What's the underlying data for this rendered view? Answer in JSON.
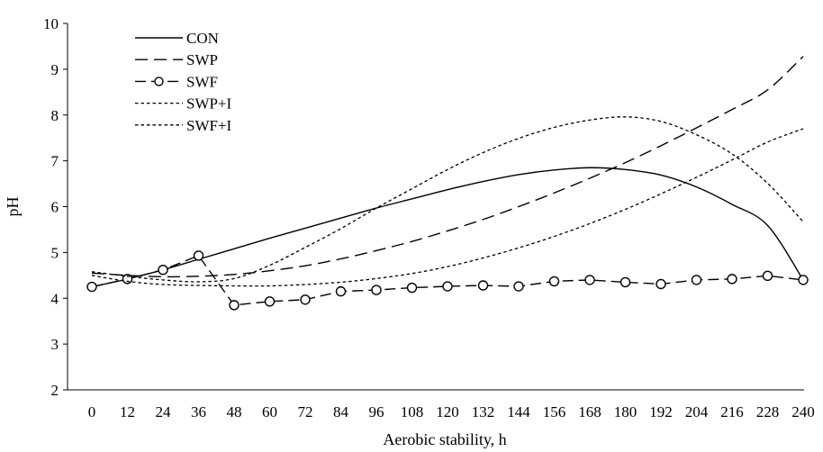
{
  "chart_data": {
    "type": "line",
    "title": "",
    "xlabel": "Aerobic stability, h",
    "ylabel": "pH",
    "x": [
      0,
      12,
      24,
      36,
      48,
      60,
      72,
      84,
      96,
      108,
      120,
      132,
      144,
      156,
      168,
      180,
      192,
      204,
      216,
      228,
      240
    ],
    "x_ticks": [
      "0",
      "12",
      "24",
      "36",
      "48",
      "60",
      "72",
      "84",
      "96",
      "108",
      "120",
      "132",
      "144",
      "156",
      "168",
      "180",
      "192",
      "204",
      "216",
      "228",
      "240"
    ],
    "ylim": [
      2,
      10
    ],
    "y_ticks": [
      "2",
      "3",
      "4",
      "5",
      "6",
      "7",
      "8",
      "9",
      "10"
    ],
    "grid": false,
    "legend_position": "top-left",
    "series": [
      {
        "name": "CON",
        "style": "solid",
        "color": "#000000",
        "values": [
          4.25,
          4.42,
          4.62,
          4.85,
          5.08,
          5.31,
          5.53,
          5.75,
          5.97,
          6.17,
          6.37,
          6.55,
          6.7,
          6.8,
          6.85,
          6.81,
          6.69,
          6.43,
          6.05,
          5.59,
          4.4
        ]
      },
      {
        "name": "SWP",
        "style": "dash",
        "color": "#000000",
        "values": [
          4.55,
          4.5,
          4.47,
          4.48,
          4.52,
          4.6,
          4.71,
          4.86,
          5.04,
          5.24,
          5.47,
          5.72,
          6.0,
          6.3,
          6.62,
          6.96,
          7.33,
          7.72,
          8.12,
          8.55,
          9.28
        ]
      },
      {
        "name": "SWF",
        "style": "dash-marker",
        "color": "#000000",
        "values": [
          4.25,
          4.42,
          4.62,
          4.93,
          3.85,
          3.93,
          3.97,
          4.15,
          4.18,
          4.23,
          4.26,
          4.28,
          4.26,
          4.37,
          4.4,
          4.35,
          4.31,
          4.4,
          4.42,
          4.49,
          4.4
        ]
      },
      {
        "name": "SWP+I",
        "style": "dot",
        "color": "#000000",
        "values": [
          4.58,
          4.48,
          4.4,
          4.36,
          4.43,
          4.72,
          5.11,
          5.52,
          5.97,
          6.39,
          6.81,
          7.18,
          7.49,
          7.73,
          7.89,
          7.96,
          7.86,
          7.57,
          7.15,
          6.51,
          5.67
        ]
      },
      {
        "name": "SWF+I",
        "style": "dot",
        "color": "#000000",
        "values": [
          4.5,
          4.37,
          4.3,
          4.28,
          4.27,
          4.27,
          4.3,
          4.35,
          4.43,
          4.54,
          4.69,
          4.88,
          5.1,
          5.35,
          5.63,
          5.94,
          6.28,
          6.64,
          7.02,
          7.41,
          7.7
        ]
      }
    ]
  }
}
